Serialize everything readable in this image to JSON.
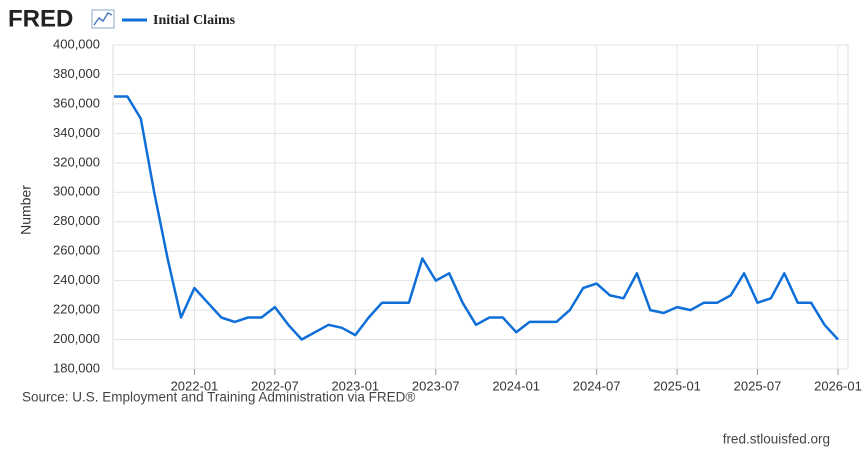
{
  "chart_data": {
    "type": "line",
    "logo": "FRED",
    "y_label": "Number",
    "source": "Source: U.S. Employment and Training Administration via FRED®",
    "site": "fred.stlouisfed.org",
    "legend": "top-left",
    "grid": true,
    "x": [
      "2021-07",
      "2021-08",
      "2021-09",
      "2021-10",
      "2021-11",
      "2021-12",
      "2022-01",
      "2022-02",
      "2022-03",
      "2022-04",
      "2022-05",
      "2022-06",
      "2022-07",
      "2022-08",
      "2022-09",
      "2022-10",
      "2022-11",
      "2022-12",
      "2023-01",
      "2023-02",
      "2023-03",
      "2023-04",
      "2023-05",
      "2023-06",
      "2023-07",
      "2023-08",
      "2023-09",
      "2023-10",
      "2023-11",
      "2023-12",
      "2024-01",
      "2024-02",
      "2024-03",
      "2024-04",
      "2024-05",
      "2024-06",
      "2024-07",
      "2024-08",
      "2024-09",
      "2024-10",
      "2024-11",
      "2024-12",
      "2025-01",
      "2025-02",
      "2025-03",
      "2025-04",
      "2025-05",
      "2025-06",
      "2025-07",
      "2025-08",
      "2025-09",
      "2025-10",
      "2025-11",
      "2025-12",
      "2026-01"
    ],
    "series": [
      {
        "name": "Initial Claims",
        "color": "#0f6fd8",
        "values": [
          365000,
          365000,
          350000,
          300000,
          255000,
          215000,
          235000,
          225000,
          215000,
          212000,
          215000,
          215000,
          222000,
          210000,
          200000,
          205000,
          210000,
          208000,
          203000,
          215000,
          225000,
          225000,
          225000,
          255000,
          240000,
          245000,
          225000,
          210000,
          215000,
          215000,
          205000,
          212000,
          212000,
          212000,
          220000,
          235000,
          238000,
          230000,
          228000,
          245000,
          220000,
          218000,
          222000,
          220000,
          225000,
          225000,
          230000,
          245000,
          225000,
          228000,
          245000,
          225000,
          225000,
          210000,
          200000
        ]
      }
    ],
    "xticks": [
      "2022-01",
      "2022-07",
      "2023-01",
      "2023-07",
      "2024-01",
      "2024-07",
      "2025-01",
      "2025-07",
      "2026-01"
    ],
    "ylim": [
      180000,
      400000
    ],
    "yticks": [
      {
        "value": 180000,
        "label": "180,000"
      },
      {
        "value": 200000,
        "label": "200,000"
      },
      {
        "value": 220000,
        "label": "220,000"
      },
      {
        "value": 240000,
        "label": "240,000"
      },
      {
        "value": 260000,
        "label": "260,000"
      },
      {
        "value": 280000,
        "label": "280,000"
      },
      {
        "value": 300000,
        "label": "300,000"
      },
      {
        "value": 320000,
        "label": "320,000"
      },
      {
        "value": 340000,
        "label": "340,000"
      },
      {
        "value": 360000,
        "label": "360,000"
      },
      {
        "value": 380000,
        "label": "380,000"
      },
      {
        "value": 400000,
        "label": "400,000"
      }
    ]
  }
}
